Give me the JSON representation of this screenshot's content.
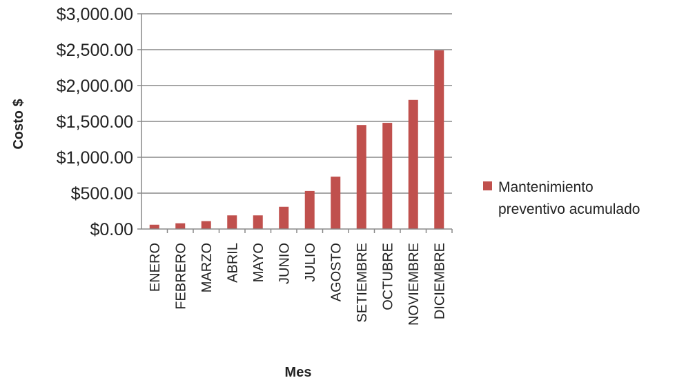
{
  "chart_data": {
    "type": "bar",
    "categories": [
      "ENERO",
      "FEBRERO",
      "MARZO",
      "ABRIL",
      "MAYO",
      "JUNIO",
      "JULIO",
      "AGOSTO",
      "SETIEMBRE",
      "OCTUBRE",
      "NOVIEMBRE",
      "DICIEMBRE"
    ],
    "series": [
      {
        "name": "Mantenimiento preventivo acumulado",
        "color": "#c0504d",
        "values": [
          60,
          80,
          110,
          190,
          190,
          310,
          530,
          730,
          1450,
          1480,
          1800,
          2490
        ]
      }
    ],
    "yticks": [
      "$0.00",
      "$500.00",
      "$1,000.00",
      "$1,500.00",
      "$2,000.00",
      "$2,500.00",
      "$3,000.00"
    ],
    "ylim": [
      0,
      3000
    ],
    "xlabel": "Mes",
    "ylabel": "Costo $",
    "legend": {
      "position": "right",
      "lines": [
        "Mantenimiento",
        "preventivo acumulado"
      ]
    },
    "grid": true
  }
}
